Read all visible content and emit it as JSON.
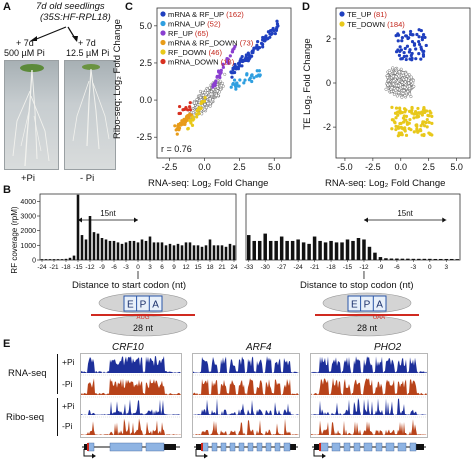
{
  "panels": {
    "a": "A",
    "b": "B",
    "c": "C",
    "d": "D",
    "e": "E"
  },
  "panel_a": {
    "line1": "7d old seedlings",
    "line2": "(35S:HF-RPL18)",
    "left_plus": "+ 7d",
    "left_conc": "500 µM Pi",
    "right_plus": "+ 7d",
    "right_conc": "12.5 µM Pi",
    "left_label": "+Pi",
    "right_label": "- Pi"
  },
  "panel_c": {
    "ylabel": "Ribo-seq: Log₂ Fold Change",
    "xlabel": "RNA-seq: Log₂ Fold Change",
    "r_value": "r = 0.76",
    "x_ticks": [
      "-2.5",
      "0.0",
      "2.5",
      "5.0"
    ],
    "y_ticks": [
      "5.0",
      "2.5",
      "0.0",
      "-2.5"
    ],
    "legend": [
      {
        "label": "mRNA & RF_UP",
        "count": "(162)",
        "color": "#1f3fbf"
      },
      {
        "label": "mRNA_UP",
        "count": "(52)",
        "color": "#2f9fe0"
      },
      {
        "label": "RF_UP",
        "count": "(65)",
        "color": "#8a3fd0"
      },
      {
        "label": "mRNA & RF_DOWN",
        "count": "(73)",
        "color": "#e89c1a"
      },
      {
        "label": "RF_DOWN",
        "count": "(46)",
        "color": "#e8c81a"
      },
      {
        "label": "mRNA_DOWN",
        "count": "(18)",
        "color": "#d83020"
      }
    ]
  },
  "panel_d": {
    "ylabel": "TE Log₂ Fold Change",
    "xlabel": "RNA-seq: Log₂ Fold Change",
    "x_ticks": [
      "-5.0",
      "-2.5",
      "0.0",
      "2.5",
      "5.0"
    ],
    "y_ticks": [
      "2",
      "0",
      "-2"
    ],
    "legend": [
      {
        "label": "TE_UP",
        "count": "(81)",
        "color": "#1f3fbf"
      },
      {
        "label": "TE_DOWN",
        "count": "(184)",
        "color": "#e8c81a"
      }
    ]
  },
  "panel_b": {
    "ylabel": "RF coverage (rpM)",
    "y_ticks": [
      "4000",
      "3000",
      "2000",
      "1000",
      "0"
    ],
    "left_xlabel": "Distance to start codon (nt)",
    "right_xlabel": "Distance to stop codon (nt)",
    "left_ticks": [
      "-24",
      "-21",
      "-18",
      "-15",
      "-12",
      "-9",
      "-6",
      "-3",
      "0",
      "3",
      "6",
      "9",
      "12",
      "15",
      "18",
      "21",
      "24"
    ],
    "right_ticks": [
      "-33",
      "-30",
      "-27",
      "-24",
      "-21",
      "-18",
      "-15",
      "-12",
      "-9",
      "-6",
      "-3",
      "0",
      "3"
    ],
    "left_span": "15nt",
    "right_span": "15nt",
    "ribosome_sites": [
      "E",
      "P",
      "A"
    ],
    "left_codon": "AUG",
    "right_codon": "UAA",
    "footprint": "28 nt"
  },
  "panel_e": {
    "genes": [
      "CRF10",
      "ARF4",
      "PHO2"
    ],
    "row_groups": [
      "RNA-seq",
      "Ribo-seq"
    ],
    "conditions": [
      "+Pi",
      "-Pi",
      "+Pi",
      "-Pi"
    ]
  },
  "chart_data": [
    {
      "type": "bar",
      "title": "",
      "xlabel": "Distance to start codon (nt)",
      "ylabel": "RF coverage (rpM)",
      "ylim": [
        0,
        4500
      ],
      "categories": [
        -24,
        -23,
        -22,
        -21,
        -20,
        -19,
        -18,
        -17,
        -16,
        -15,
        -14,
        -13,
        -12,
        -11,
        -10,
        -9,
        -8,
        -7,
        -6,
        -5,
        -4,
        -3,
        -2,
        -1,
        0,
        1,
        2,
        3,
        4,
        5,
        6,
        7,
        8,
        9,
        10,
        11,
        12,
        13,
        14,
        15,
        16,
        17,
        18,
        19,
        20,
        21,
        22,
        23,
        24
      ],
      "values": [
        60,
        60,
        60,
        60,
        60,
        60,
        80,
        150,
        300,
        4450,
        1700,
        1400,
        3000,
        1900,
        1800,
        1500,
        1400,
        1300,
        1300,
        1200,
        1100,
        1200,
        1300,
        1300,
        1200,
        1400,
        1300,
        1600,
        1200,
        1200,
        1200,
        1000,
        1100,
        1000,
        1100,
        1000,
        1200,
        1200,
        1000,
        1000,
        900,
        1000,
        1400,
        1000,
        1000,
        1000,
        900,
        1100,
        1000
      ],
      "grid": false
    },
    {
      "type": "bar",
      "title": "",
      "xlabel": "Distance to stop codon (nt)",
      "ylabel": "RF coverage (rpM)",
      "ylim": [
        0,
        4500
      ],
      "categories": [
        -33,
        -32,
        -31,
        -30,
        -29,
        -28,
        -27,
        -26,
        -25,
        -24,
        -23,
        -22,
        -21,
        -20,
        -19,
        -18,
        -17,
        -16,
        -15,
        -14,
        -13,
        -12,
        -11,
        -10,
        -9,
        -8,
        -7,
        -6,
        -5,
        -4,
        -3,
        -2,
        -1,
        0,
        1,
        2,
        3,
        4,
        5
      ],
      "values": [
        1700,
        1300,
        1300,
        1800,
        1300,
        1300,
        1600,
        1300,
        1300,
        1400,
        1200,
        1100,
        1600,
        1300,
        1200,
        1300,
        1200,
        1200,
        1400,
        1300,
        1500,
        1400,
        900,
        500,
        200,
        120,
        100,
        100,
        90,
        90,
        80,
        80,
        80,
        80,
        70,
        70,
        70,
        70,
        60
      ],
      "grid": false
    }
  ]
}
